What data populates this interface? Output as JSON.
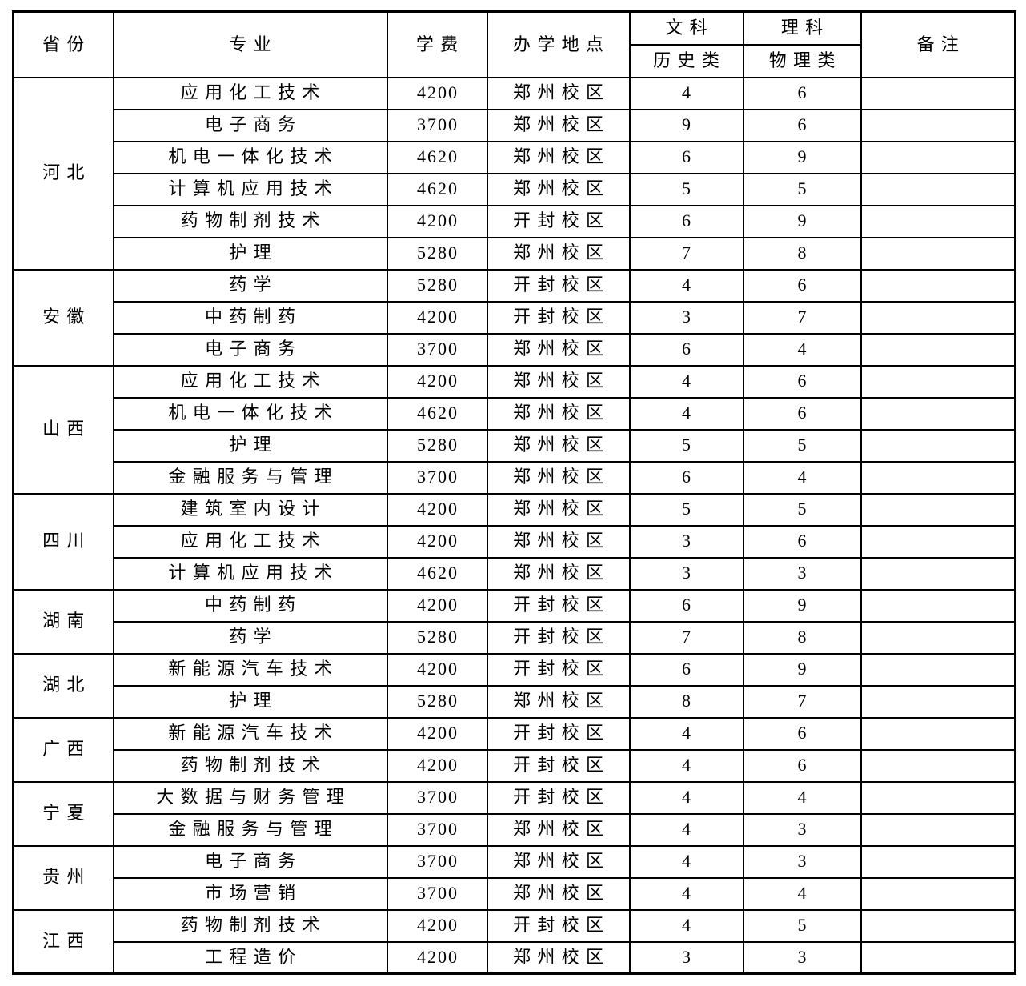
{
  "page": {
    "background": "#ffffff",
    "border_color": "#000000",
    "text_color": "#000000"
  },
  "table": {
    "header": {
      "province": "省份",
      "major": "专业",
      "tuition": "学费",
      "location": "办学地点",
      "liberal_arts": "文科",
      "science": "理科",
      "history_class": "历史类",
      "physics_class": "物理类",
      "remarks": "备注"
    },
    "groups": [
      {
        "province": "河北",
        "rows": [
          {
            "major": "应用化工技术",
            "tuition": "4200",
            "location": "郑州校区",
            "history": "4",
            "physics": "6",
            "remarks": ""
          },
          {
            "major": "电子商务",
            "tuition": "3700",
            "location": "郑州校区",
            "history": "9",
            "physics": "6",
            "remarks": ""
          },
          {
            "major": "机电一体化技术",
            "tuition": "4620",
            "location": "郑州校区",
            "history": "6",
            "physics": "9",
            "remarks": ""
          },
          {
            "major": "计算机应用技术",
            "tuition": "4620",
            "location": "郑州校区",
            "history": "5",
            "physics": "5",
            "remarks": ""
          },
          {
            "major": "药物制剂技术",
            "tuition": "4200",
            "location": "开封校区",
            "history": "6",
            "physics": "9",
            "remarks": ""
          },
          {
            "major": "护理",
            "tuition": "5280",
            "location": "郑州校区",
            "history": "7",
            "physics": "8",
            "remarks": ""
          }
        ]
      },
      {
        "province": "安徽",
        "rows": [
          {
            "major": "药学",
            "tuition": "5280",
            "location": "开封校区",
            "history": "4",
            "physics": "6",
            "remarks": ""
          },
          {
            "major": "中药制药",
            "tuition": "4200",
            "location": "开封校区",
            "history": "3",
            "physics": "7",
            "remarks": ""
          },
          {
            "major": "电子商务",
            "tuition": "3700",
            "location": "郑州校区",
            "history": "6",
            "physics": "4",
            "remarks": ""
          }
        ]
      },
      {
        "province": "山西",
        "rows": [
          {
            "major": "应用化工技术",
            "tuition": "4200",
            "location": "郑州校区",
            "history": "4",
            "physics": "6",
            "remarks": ""
          },
          {
            "major": "机电一体化技术",
            "tuition": "4620",
            "location": "郑州校区",
            "history": "4",
            "physics": "6",
            "remarks": ""
          },
          {
            "major": "护理",
            "tuition": "5280",
            "location": "郑州校区",
            "history": "5",
            "physics": "5",
            "remarks": ""
          },
          {
            "major": "金融服务与管理",
            "tuition": "3700",
            "location": "郑州校区",
            "history": "6",
            "physics": "4",
            "remarks": ""
          }
        ]
      },
      {
        "province": "四川",
        "rows": [
          {
            "major": "建筑室内设计",
            "tuition": "4200",
            "location": "郑州校区",
            "history": "5",
            "physics": "5",
            "remarks": ""
          },
          {
            "major": "应用化工技术",
            "tuition": "4200",
            "location": "郑州校区",
            "history": "3",
            "physics": "6",
            "remarks": ""
          },
          {
            "major": "计算机应用技术",
            "tuition": "4620",
            "location": "郑州校区",
            "history": "3",
            "physics": "3",
            "remarks": ""
          }
        ]
      },
      {
        "province": "湖南",
        "rows": [
          {
            "major": "中药制药",
            "tuition": "4200",
            "location": "开封校区",
            "history": "6",
            "physics": "9",
            "remarks": ""
          },
          {
            "major": "药学",
            "tuition": "5280",
            "location": "开封校区",
            "history": "7",
            "physics": "8",
            "remarks": ""
          }
        ]
      },
      {
        "province": "湖北",
        "rows": [
          {
            "major": "新能源汽车技术",
            "tuition": "4200",
            "location": "开封校区",
            "history": "6",
            "physics": "9",
            "remarks": ""
          },
          {
            "major": "护理",
            "tuition": "5280",
            "location": "郑州校区",
            "history": "8",
            "physics": "7",
            "remarks": ""
          }
        ]
      },
      {
        "province": "广西",
        "rows": [
          {
            "major": "新能源汽车技术",
            "tuition": "4200",
            "location": "开封校区",
            "history": "4",
            "physics": "6",
            "remarks": ""
          },
          {
            "major": "药物制剂技术",
            "tuition": "4200",
            "location": "开封校区",
            "history": "4",
            "physics": "6",
            "remarks": ""
          }
        ]
      },
      {
        "province": "宁夏",
        "rows": [
          {
            "major": "大数据与财务管理",
            "tuition": "3700",
            "location": "开封校区",
            "history": "4",
            "physics": "4",
            "remarks": ""
          },
          {
            "major": "金融服务与管理",
            "tuition": "3700",
            "location": "郑州校区",
            "history": "4",
            "physics": "3",
            "remarks": ""
          }
        ]
      },
      {
        "province": "贵州",
        "rows": [
          {
            "major": "电子商务",
            "tuition": "3700",
            "location": "郑州校区",
            "history": "4",
            "physics": "3",
            "remarks": ""
          },
          {
            "major": "市场营销",
            "tuition": "3700",
            "location": "郑州校区",
            "history": "4",
            "physics": "4",
            "remarks": ""
          }
        ]
      },
      {
        "province": "江西",
        "rows": [
          {
            "major": "药物制剂技术",
            "tuition": "4200",
            "location": "开封校区",
            "history": "4",
            "physics": "5",
            "remarks": ""
          },
          {
            "major": "工程造价",
            "tuition": "4200",
            "location": "郑州校区",
            "history": "3",
            "physics": "3",
            "remarks": ""
          }
        ]
      }
    ]
  }
}
